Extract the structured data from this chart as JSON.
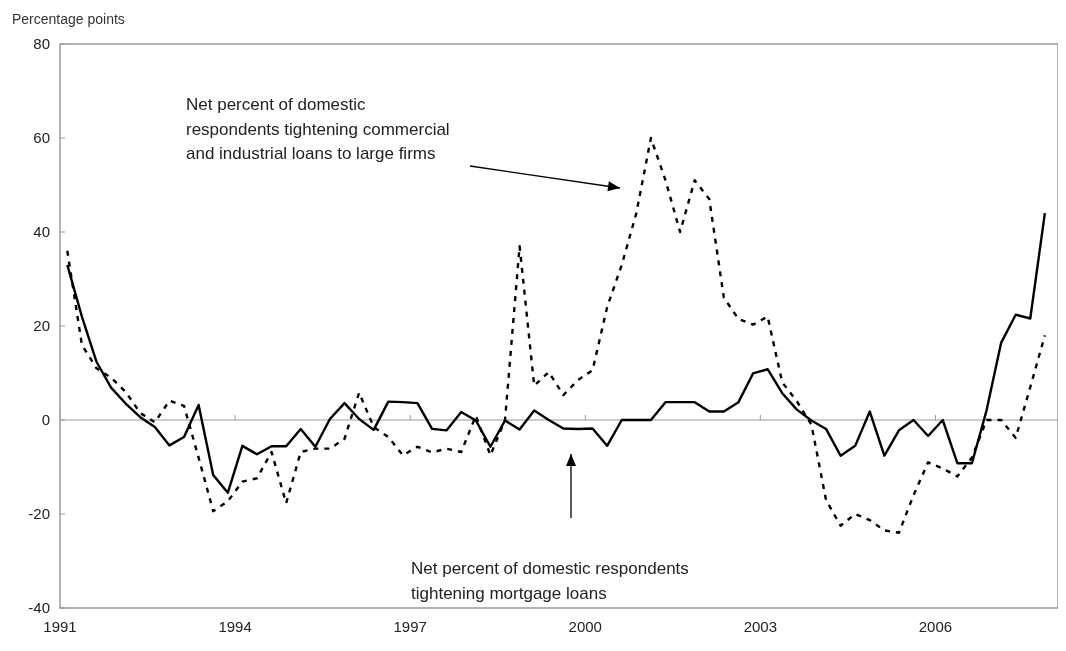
{
  "chart_data": {
    "type": "line",
    "ylabel": "Percentage points",
    "x": [
      1991.125,
      1991.375,
      1991.625,
      1991.875,
      1992.125,
      1992.375,
      1992.625,
      1992.875,
      1993.125,
      1993.375,
      1993.625,
      1993.875,
      1994.125,
      1994.375,
      1994.625,
      1994.875,
      1995.125,
      1995.375,
      1995.625,
      1995.875,
      1996.125,
      1996.375,
      1996.625,
      1996.875,
      1997.125,
      1997.375,
      1997.625,
      1997.875,
      1998.125,
      1998.375,
      1998.625,
      1998.875,
      1999.125,
      1999.375,
      1999.625,
      1999.875,
      2000.125,
      2000.375,
      2000.625,
      2000.875,
      2001.125,
      2001.375,
      2001.625,
      2001.875,
      2002.125,
      2002.375,
      2002.625,
      2002.875,
      2003.125,
      2003.375,
      2003.625,
      2003.875,
      2004.125,
      2004.375,
      2004.625,
      2004.875,
      2005.125,
      2005.375,
      2005.625,
      2005.875,
      2006.125,
      2006.375,
      2006.625,
      2006.875,
      2007.125,
      2007.375,
      2007.625,
      2007.875
    ],
    "series": [
      {
        "color": "#000000",
        "line_style": "solid",
        "values": [
          33,
          22,
          12.4,
          6.9,
          3.5,
          0.6,
          -1.5,
          -5.4,
          -3.6,
          3.2,
          -11.7,
          -15.5,
          -5.5,
          -7.3,
          -5.6,
          -5.6,
          -1.9,
          -5.7,
          0.2,
          3.6,
          0.2,
          -2.1,
          3.9,
          3.8,
          3.6,
          -1.9,
          -2.2,
          1.7,
          -0.1,
          -5.7,
          -0.1,
          -2,
          2,
          0,
          -1.8,
          -1.9,
          -1.8,
          -5.5,
          0,
          0,
          0,
          3.8,
          3.8,
          3.8,
          1.8,
          1.8,
          3.8,
          9.9,
          10.8,
          5.7,
          2.2,
          -0.1,
          -1.9,
          -7.6,
          -5.5,
          1.8,
          -7.6,
          -2.2,
          0,
          -3.4,
          0,
          -9.2,
          -9.2,
          2,
          16.4,
          22.4,
          21.6,
          44
        ]
      },
      {
        "color": "#000000",
        "line_style": "dashed",
        "values": [
          36,
          16,
          11,
          9,
          6,
          1.5,
          -0.5,
          4.1,
          3,
          -8,
          -19.4,
          -17.3,
          -13.1,
          -12.4,
          -6.8,
          -17.7,
          -6.8,
          -6.1,
          -6.1,
          -4,
          5.8,
          -1.5,
          -3.6,
          -7.5,
          -5.7,
          -6.9,
          -6.1,
          -6.8,
          0.9,
          -7.5,
          0,
          37,
          7.3,
          10.2,
          5.3,
          8.5,
          10.6,
          24,
          33,
          44,
          60,
          51,
          40,
          51,
          47,
          26,
          21.5,
          20.3,
          22,
          8,
          4,
          -1,
          -17,
          -22.5,
          -20,
          -21.3,
          -23.5,
          -24,
          -16,
          -9,
          -10.3,
          -12,
          -8,
          0,
          0,
          -3.8,
          7,
          18
        ]
      }
    ],
    "xlim": [
      1991,
      2008.1
    ],
    "xticks": [
      1991,
      1994,
      1997,
      2000,
      2003,
      2006
    ],
    "ylim": [
      -40,
      80
    ],
    "yticks": [
      -40,
      -20,
      0,
      20,
      40,
      60,
      80
    ],
    "ref_lines": [
      {
        "axis": "y",
        "value": 0
      }
    ],
    "grid": false,
    "annotations": [
      "Net percent of domestic\nrespondents tightening commercial\nand industrial loans to large firms",
      "Net percent of domestic respondents\ntightening mortgage loans"
    ]
  }
}
